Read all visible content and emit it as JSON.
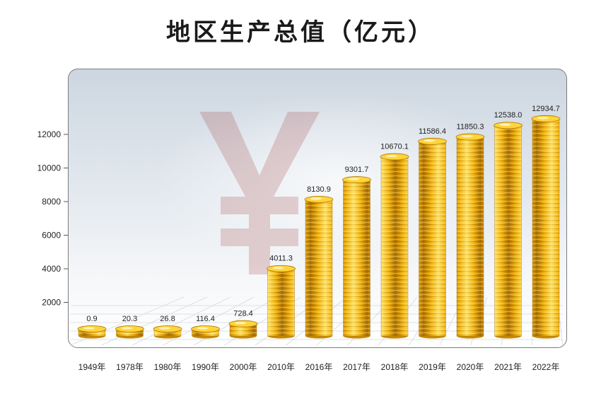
{
  "chart_data": {
    "type": "bar",
    "title": "地区生产总值（亿元）",
    "xlabel": "",
    "ylabel": "",
    "categories": [
      "1949年",
      "1978年",
      "1980年",
      "1990年",
      "2000年",
      "2010年",
      "2016年",
      "2017年",
      "2018年",
      "2019年",
      "2020年",
      "2021年",
      "2022年"
    ],
    "values": [
      0.9,
      20.3,
      26.8,
      116.4,
      728.4,
      4011.3,
      8130.9,
      9301.7,
      10670.1,
      11586.4,
      11850.3,
      12538.0,
      12934.7
    ],
    "value_labels": [
      "0.9",
      "20.3",
      "26.8",
      "116.4",
      "728.4",
      "4011.3",
      "8130.9",
      "9301.7",
      "10670.1",
      "11586.4",
      "11850.3",
      "12538.0",
      "12934.7"
    ],
    "yticks": [
      2000,
      4000,
      6000,
      8000,
      10000,
      12000
    ],
    "ylim": [
      0,
      13800
    ],
    "grid": false,
    "colors": {
      "bar_light": "#ffe36a",
      "bar_mid": "#f2b40f",
      "bar_dark": "#b87a00"
    }
  }
}
